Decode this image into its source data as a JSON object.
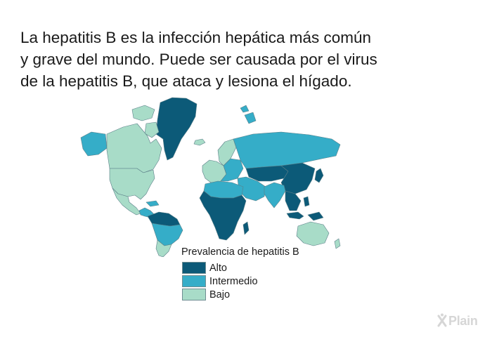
{
  "intro": {
    "line1": "La hepatitis B es la infección hepática más común",
    "line2": "y grave del mundo. Puede ser causada por el virus",
    "line3": "de la hepatitis B, que ataca y lesiona el hígado."
  },
  "legend": {
    "title": "Prevalencia de hepatitis B",
    "items": [
      {
        "label": "Alto",
        "color": "#0c5a78"
      },
      {
        "label": "Intermedio",
        "color": "#35adc8"
      },
      {
        "label": "Bajo",
        "color": "#a8dcc8"
      }
    ]
  },
  "map": {
    "colors": {
      "high": "#0c5a78",
      "intermediate": "#35adc8",
      "low": "#a8dcc8",
      "border": "#5b7f88"
    },
    "regions": {
      "greenland": "high",
      "canada": "low",
      "alaska": "intermediate",
      "usa": "low",
      "mexico": "low",
      "central_america": "intermediate",
      "amazon_basin": "high",
      "south_america": "intermediate",
      "southern_cone": "low",
      "western_europe": "low",
      "eastern_europe": "intermediate",
      "russia": "intermediate",
      "north_africa": "intermediate",
      "sub_saharan_africa": "high",
      "middle_east": "intermediate",
      "central_asia": "high",
      "china": "high",
      "south_asia": "intermediate",
      "southeast_asia": "high",
      "australia": "low",
      "new_zealand": "low"
    }
  },
  "brand": {
    "text": "Plain",
    "icon": "x-plain-logo-icon"
  }
}
